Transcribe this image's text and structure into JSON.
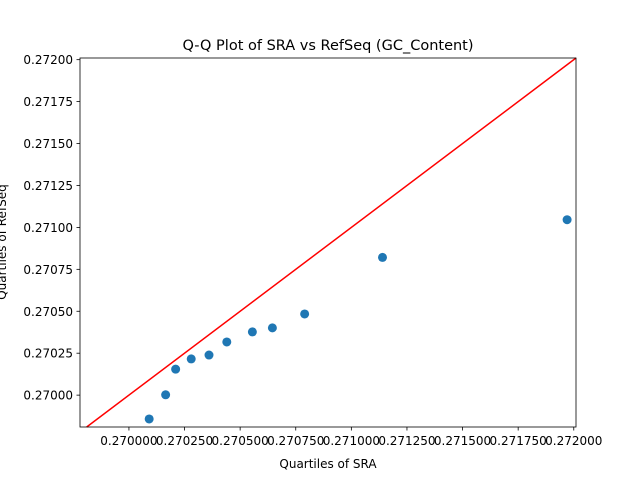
{
  "chart_data": {
    "type": "scatter",
    "title": "Q-Q Plot of SRA vs RefSeq (GC_Content)",
    "xlabel": "Quartiles of SRA",
    "ylabel": "Quartiles of RefSeq",
    "xlim": [
      0.26978,
      0.27201
    ],
    "ylim": [
      0.26981,
      0.27201
    ],
    "x_ticks": [
      {
        "value": 0.27,
        "label": "0.270000"
      },
      {
        "value": 0.27025,
        "label": "0.270250"
      },
      {
        "value": 0.2705,
        "label": "0.270500"
      },
      {
        "value": 0.27075,
        "label": "0.270750"
      },
      {
        "value": 0.271,
        "label": "0.271000"
      },
      {
        "value": 0.27125,
        "label": "0.271250"
      },
      {
        "value": 0.2715,
        "label": "0.271500"
      },
      {
        "value": 0.27175,
        "label": "0.271750"
      },
      {
        "value": 0.272,
        "label": "0.272000"
      }
    ],
    "y_ticks": [
      {
        "value": 0.27,
        "label": "0.27000"
      },
      {
        "value": 0.27025,
        "label": "0.27025"
      },
      {
        "value": 0.2705,
        "label": "0.27050"
      },
      {
        "value": 0.27075,
        "label": "0.27075"
      },
      {
        "value": 0.271,
        "label": "0.27100"
      },
      {
        "value": 0.27125,
        "label": "0.27125"
      },
      {
        "value": 0.2715,
        "label": "0.27150"
      },
      {
        "value": 0.27175,
        "label": "0.27175"
      },
      {
        "value": 0.272,
        "label": "0.27200"
      }
    ],
    "points": [
      {
        "x": 0.270091,
        "y": 0.269858
      },
      {
        "x": 0.270165,
        "y": 0.270002
      },
      {
        "x": 0.27021,
        "y": 0.270155
      },
      {
        "x": 0.27028,
        "y": 0.270216
      },
      {
        "x": 0.27036,
        "y": 0.270239
      },
      {
        "x": 0.27044,
        "y": 0.270317
      },
      {
        "x": 0.270555,
        "y": 0.270377
      },
      {
        "x": 0.270645,
        "y": 0.270401
      },
      {
        "x": 0.27079,
        "y": 0.270484
      },
      {
        "x": 0.27114,
        "y": 0.270821
      },
      {
        "x": 0.27197,
        "y": 0.271046
      }
    ],
    "reference_line": {
      "slope": 1,
      "intercept": 0
    },
    "grid": false,
    "colors": {
      "points": "#1f77b4",
      "reference_line": "#ff0000",
      "axes": "#000000"
    }
  }
}
